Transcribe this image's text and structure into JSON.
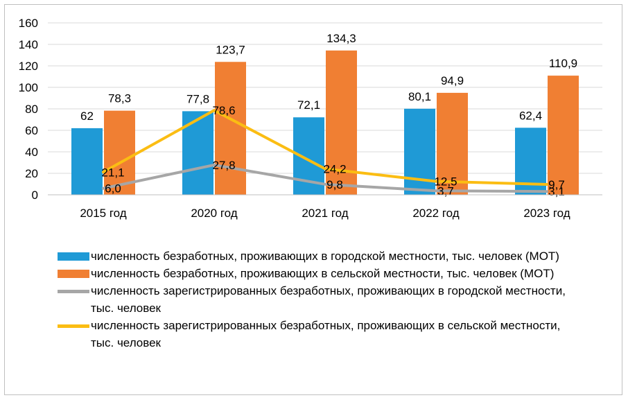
{
  "chart_data": {
    "type": "bar",
    "categories": [
      "2015 год",
      "2020 год",
      "2021 год",
      "2022 год",
      "2023 год"
    ],
    "ylim": [
      0,
      160
    ],
    "yticks": [
      0,
      20,
      40,
      60,
      80,
      100,
      120,
      140,
      160
    ],
    "ytick_labels": [
      "0",
      "20",
      "40",
      "60",
      "80",
      "100",
      "120",
      "140",
      "160"
    ],
    "grid": true,
    "legend_position": "bottom",
    "series": [
      {
        "name": "численность безработных, проживающих в городской местности, тыс. человек (МОТ)",
        "kind": "bar",
        "color": "#1f9ad6",
        "values": [
          62,
          77.8,
          72.1,
          80.1,
          62.4
        ],
        "labels": [
          "62",
          "77,8",
          "72,1",
          "80,1",
          "62,4"
        ]
      },
      {
        "name": "численность безработных, проживающих в сельской местности, тыс. человек (МОТ)",
        "kind": "bar",
        "color": "#f07f33",
        "values": [
          78.3,
          123.7,
          134.3,
          94.9,
          110.9
        ],
        "labels": [
          "78,3",
          "123,7",
          "134,3",
          "94,9",
          "110,9"
        ]
      },
      {
        "name": "численность зарегистрированных безработных, проживающих в городской местности, тыс. человек",
        "kind": "line",
        "color": "#a6a6a6",
        "values": [
          6.0,
          27.8,
          9.8,
          3.7,
          3.1
        ],
        "labels": [
          "6,0",
          "27,8",
          "9,8",
          "3,7",
          "3,1"
        ]
      },
      {
        "name": "численность зарегистрированных безработных, проживающих в сельской местности, тыс. человек",
        "kind": "line",
        "color": "#fbbd13",
        "values": [
          21.1,
          78.6,
          24.2,
          12.5,
          9.7
        ],
        "labels": [
          "21,1",
          "78,6",
          "24,2",
          "12,5",
          "9,7"
        ]
      }
    ]
  }
}
